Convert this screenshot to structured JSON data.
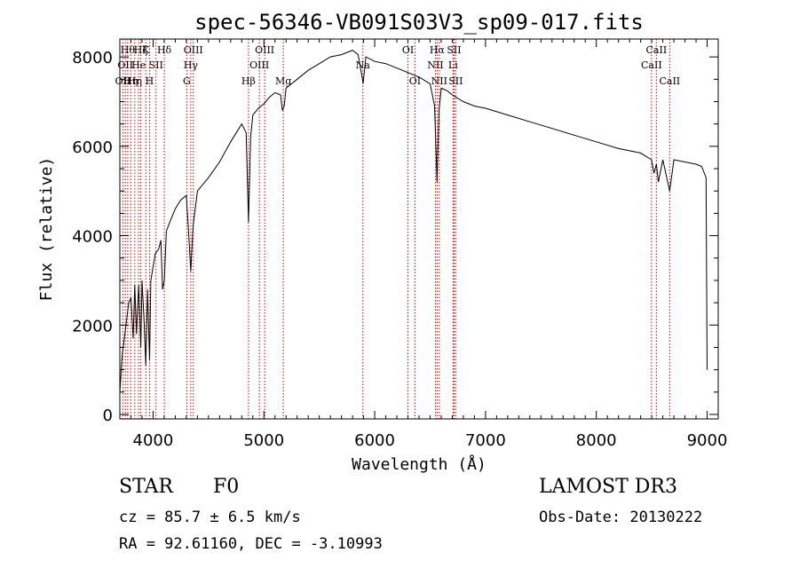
{
  "chart_data": {
    "type": "line",
    "title": "spec-56346-VB091S03V3_sp09-017.fits",
    "xlabel": "Wavelength (Å)",
    "ylabel": "Flux (relative)",
    "xlim": [
      3700,
      9100
    ],
    "ylim": [
      -100,
      8400
    ],
    "xticks": [
      4000,
      5000,
      6000,
      7000,
      8000,
      9000
    ],
    "yticks": [
      0,
      2000,
      4000,
      6000,
      8000
    ],
    "grid": false,
    "legend": "none",
    "line_color": "#000000",
    "marker_color": "#cc0000",
    "series": [
      {
        "x": [
          3700,
          3720,
          3740,
          3760,
          3780,
          3800,
          3820,
          3835,
          3850,
          3870,
          3889,
          3900,
          3920,
          3934,
          3950,
          3968,
          3980,
          4000,
          4020,
          4050,
          4070,
          4085,
          4101,
          4120,
          4150,
          4200,
          4250,
          4300,
          4320,
          4340,
          4360,
          4400,
          4500,
          4600,
          4700,
          4800,
          4840,
          4861,
          4880,
          4900,
          4950,
          5000,
          5050,
          5100,
          5150,
          5167,
          5183,
          5200,
          5300,
          5400,
          5500,
          5600,
          5700,
          5800,
          5850,
          5890,
          5895,
          5920,
          6000,
          6100,
          6200,
          6300,
          6400,
          6500,
          6540,
          6563,
          6580,
          6600,
          6650,
          6700,
          6800,
          6900,
          7000,
          7200,
          7400,
          7600,
          7800,
          8000,
          8200,
          8400,
          8498,
          8520,
          8542,
          8560,
          8600,
          8662,
          8700,
          8800,
          8900,
          8950,
          8990,
          9000
        ],
        "y": [
          500,
          1300,
          1700,
          2100,
          2500,
          2600,
          1700,
          2900,
          1800,
          2900,
          1500,
          3000,
          2000,
          1100,
          2800,
          1200,
          3000,
          3300,
          3600,
          3700,
          3900,
          2800,
          3000,
          4100,
          4300,
          4600,
          4800,
          4900,
          4100,
          3200,
          4200,
          5000,
          5300,
          5650,
          6100,
          6500,
          6300,
          4300,
          6200,
          6700,
          6850,
          6950,
          7100,
          7200,
          7150,
          6800,
          6900,
          7300,
          7500,
          7700,
          7850,
          8000,
          8050,
          8150,
          8050,
          7500,
          7400,
          8000,
          7900,
          7850,
          7750,
          7650,
          7550,
          7400,
          6900,
          5200,
          6800,
          7300,
          7250,
          7150,
          7000,
          6900,
          6850,
          6700,
          6550,
          6400,
          6250,
          6100,
          5950,
          5850,
          5700,
          5400,
          5600,
          5200,
          5700,
          5000,
          5700,
          5650,
          5600,
          5550,
          5300,
          1000
        ]
      }
    ],
    "line_markers": [
      {
        "x": 3727,
        "label": "OII",
        "row": 2
      },
      {
        "x": 3750,
        "label": "OII",
        "row": 1
      },
      {
        "x": 3771,
        "label": "Hθ",
        "row": 0
      },
      {
        "x": 3798,
        "label": "Hη",
        "row": 2
      },
      {
        "x": 3835,
        "label": "Hη",
        "row": 2
      },
      {
        "x": 3869,
        "label": "He",
        "row": 1
      },
      {
        "x": 3889,
        "label": "Hζ",
        "row": 0
      },
      {
        "x": 3934,
        "label": "K",
        "row": 0
      },
      {
        "x": 3968,
        "label": "H",
        "row": 2
      },
      {
        "x": 4026,
        "label": "SII",
        "row": 1
      },
      {
        "x": 4101,
        "label": "Hδ",
        "row": 0
      },
      {
        "x": 4304,
        "label": "G",
        "row": 2
      },
      {
        "x": 4340,
        "label": "Hγ",
        "row": 1
      },
      {
        "x": 4363,
        "label": "OIII",
        "row": 0
      },
      {
        "x": 4861,
        "label": "Hβ",
        "row": 2
      },
      {
        "x": 4959,
        "label": "OIII",
        "row": 1
      },
      {
        "x": 5007,
        "label": "OIII",
        "row": 0
      },
      {
        "x": 5175,
        "label": "Mg",
        "row": 2
      },
      {
        "x": 5893,
        "label": "Na",
        "row": 1
      },
      {
        "x": 6300,
        "label": "OI",
        "row": 0
      },
      {
        "x": 6363,
        "label": "OI",
        "row": 2
      },
      {
        "x": 6548,
        "label": "NII",
        "row": 1
      },
      {
        "x": 6563,
        "label": "Hα",
        "row": 0
      },
      {
        "x": 6583,
        "label": "NII",
        "row": 2
      },
      {
        "x": 6707,
        "label": "Li",
        "row": 1
      },
      {
        "x": 6716,
        "label": "SII",
        "row": 0
      },
      {
        "x": 6731,
        "label": "SII",
        "row": 2
      },
      {
        "x": 8498,
        "label": "CaII",
        "row": 1
      },
      {
        "x": 8542,
        "label": "CaII",
        "row": 0
      },
      {
        "x": 8662,
        "label": "CaII",
        "row": 2
      }
    ]
  },
  "info": {
    "obj_class": "STAR",
    "obj_subclass": "F0",
    "survey": "LAMOST DR3",
    "cz": "cz = 85.7 ± 6.5 km/s",
    "obs_date": "Obs-Date: 20130222",
    "radec": "RA =  92.61160, DEC =  -3.10993"
  }
}
